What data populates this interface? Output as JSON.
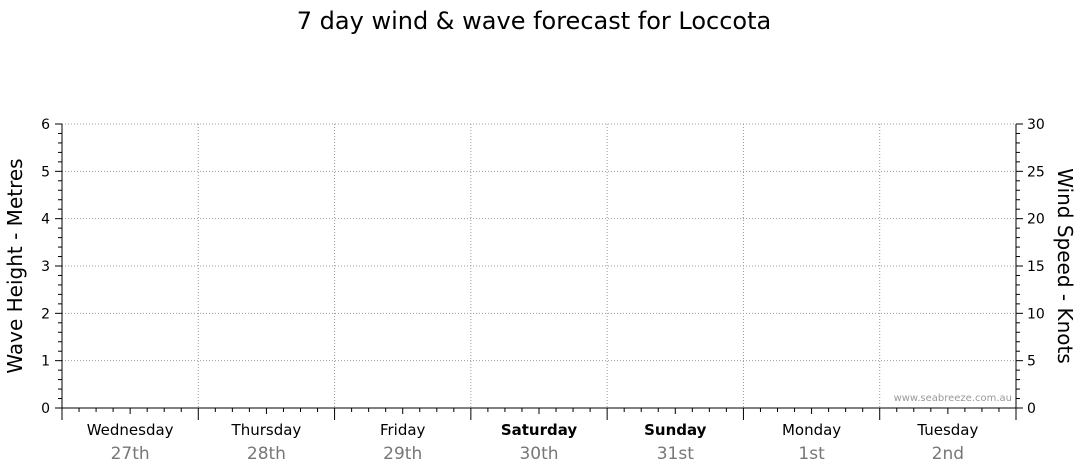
{
  "chart_data": {
    "type": "line",
    "title": "7 day wind & wave forecast for Loccota",
    "ylabel_left": "Wave Height - Metres",
    "ylabel_right": "Wind Speed - Knots",
    "ylim_left": [
      0,
      6
    ],
    "ylim_right": [
      0,
      30
    ],
    "yticks_left": [
      "0",
      "1",
      "2",
      "3",
      "4",
      "5",
      "6"
    ],
    "yticks_right": [
      "0",
      "5",
      "10",
      "15",
      "20",
      "25",
      "30"
    ],
    "grid": true,
    "categories": [
      {
        "day": "Wednesday",
        "date": "27th",
        "weekend": false
      },
      {
        "day": "Thursday",
        "date": "28th",
        "weekend": false
      },
      {
        "day": "Friday",
        "date": "29th",
        "weekend": false
      },
      {
        "day": "Saturday",
        "date": "30th",
        "weekend": true
      },
      {
        "day": "Sunday",
        "date": "31st",
        "weekend": true
      },
      {
        "day": "Monday",
        "date": "1st",
        "weekend": false
      },
      {
        "day": "Tuesday",
        "date": "2nd",
        "weekend": false
      }
    ],
    "series": [],
    "watermark": "www.seabreeze.com.au"
  }
}
